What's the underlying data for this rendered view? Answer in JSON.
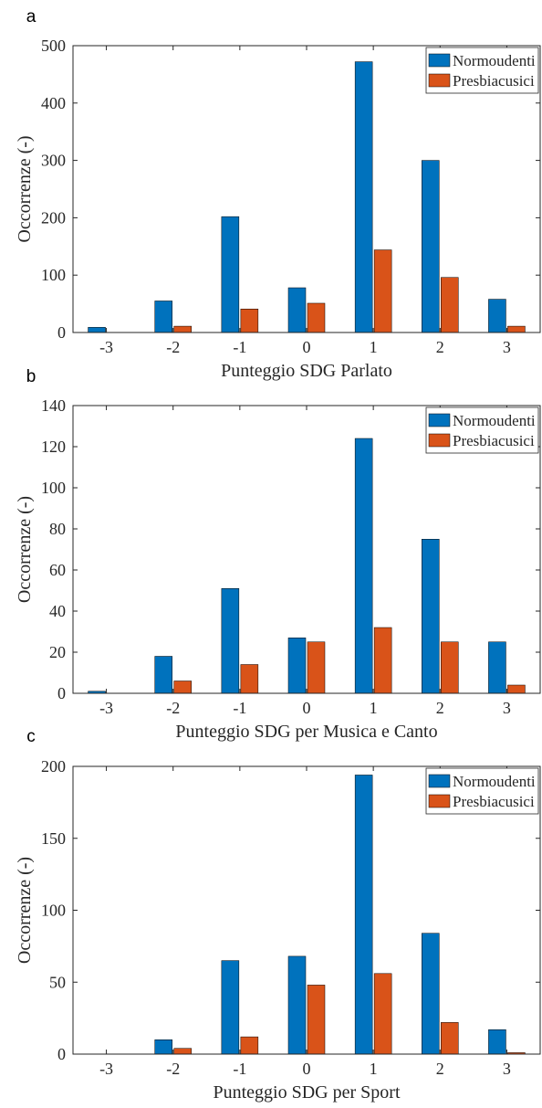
{
  "chart_data": [
    {
      "panel_label": "a",
      "type": "bar",
      "categories": [
        "-3",
        "-2",
        "-1",
        "0",
        "1",
        "2",
        "3"
      ],
      "series": [
        {
          "name": "Normoudenti",
          "values": [
            9,
            55,
            202,
            78,
            472,
            300,
            58
          ]
        },
        {
          "name": "Presbiacusici",
          "values": [
            0,
            11,
            41,
            51,
            144,
            96,
            11
          ]
        }
      ],
      "xlabel": "Punteggio SDG Parlato",
      "ylabel": "Occorrenze (-)",
      "ylim": [
        0,
        500
      ],
      "yticks": [
        0,
        100,
        200,
        300,
        400,
        500
      ],
      "legend": "top-right",
      "grid": false
    },
    {
      "panel_label": "b",
      "type": "bar",
      "categories": [
        "-3",
        "-2",
        "-1",
        "0",
        "1",
        "2",
        "3"
      ],
      "series": [
        {
          "name": "Normoudenti",
          "values": [
            1,
            18,
            51,
            27,
            124,
            75,
            25
          ]
        },
        {
          "name": "Presbiacusici",
          "values": [
            0,
            6,
            14,
            25,
            32,
            25,
            4
          ]
        }
      ],
      "xlabel": "Punteggio SDG per Musica e Canto",
      "ylabel": "Occorrenze (-)",
      "ylim": [
        0,
        140
      ],
      "yticks": [
        0,
        20,
        40,
        60,
        80,
        100,
        120,
        140
      ],
      "legend": "top-right",
      "grid": false
    },
    {
      "panel_label": "c",
      "type": "bar",
      "categories": [
        "-3",
        "-2",
        "-1",
        "0",
        "1",
        "2",
        "3"
      ],
      "series": [
        {
          "name": "Normoudenti",
          "values": [
            0,
            10,
            65,
            68,
            194,
            84,
            17
          ]
        },
        {
          "name": "Presbiacusici",
          "values": [
            0,
            4,
            12,
            48,
            56,
            22,
            1
          ]
        }
      ],
      "xlabel": "Punteggio SDG per Sport",
      "ylabel": "Occorrenze (-)",
      "ylim": [
        0,
        200
      ],
      "yticks": [
        0,
        50,
        100,
        150,
        200
      ],
      "legend": "top-right",
      "grid": false
    }
  ],
  "colors": {
    "Normoudenti": "#0072bd",
    "Presbiacusici": "#d95319",
    "axis": "#262626"
  }
}
